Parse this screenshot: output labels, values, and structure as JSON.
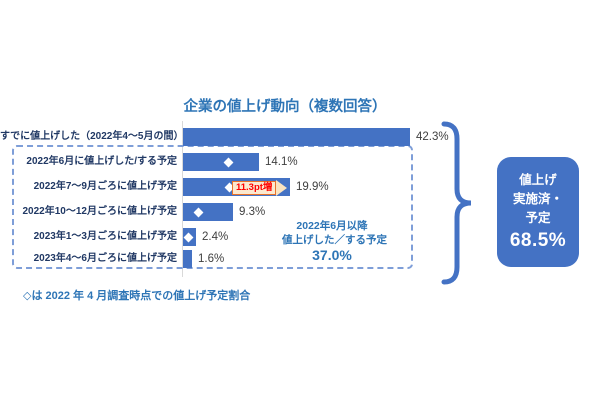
{
  "title": "企業の値上げ動向（複数回答）",
  "chart_data": {
    "type": "bar",
    "orientation": "horizontal",
    "title": "企業の値上げ動向（複数回答）",
    "categories": [
      "すでに値上げした（2022年4～5月の間）",
      "2022年6月に値上げした/する予定",
      "2022年7～9月ごろに値上げ予定",
      "2022年10～12月ごろに値上げ予定",
      "2023年1～3月ごろに値上げ予定",
      "2023年4～6月ごろに値上げ予定"
    ],
    "values": [
      42.3,
      14.1,
      19.9,
      9.3,
      2.4,
      1.6
    ],
    "value_labels": [
      "42.3%",
      "14.1%",
      "19.9%",
      "9.3%",
      "2.4%",
      "1.6%"
    ],
    "april_survey_markers": [
      null,
      8.4,
      8.6,
      2.8,
      1.1,
      null
    ],
    "xlim": [
      0,
      45
    ],
    "grid": false,
    "legend": "none",
    "increase_annotation": {
      "row": 2,
      "text": "11.3pt増"
    },
    "group_annotation": {
      "line1": "2022年6月以降",
      "line2": "値上げした／する予定",
      "value": "37.0%"
    }
  },
  "summary_box": {
    "line1": "値上げ",
    "line2": "実施済・",
    "line3": "予定",
    "value": "68.5%"
  },
  "footnote": "◇は 2022 年 4 月調査時点での値上げ予定割合",
  "colors": {
    "bar": "#4472C4",
    "title_text": "#2E75B6",
    "category_text": "#203864",
    "value_text": "#404040",
    "dashed_border": "#7E9ED8",
    "group_annotation_text": "#2E75B6",
    "arrow_fill": "#FCE9CF",
    "arrow_border": "#E8732B",
    "arrow_text": "#FF0000",
    "diamond_marker": "#FFFFFF",
    "summary_fill": "#4472C4",
    "summary_text": "#FFFFFF",
    "brace": "#4472C4",
    "axis_line": "#D9D9D9",
    "background": "#FFFFFF"
  }
}
